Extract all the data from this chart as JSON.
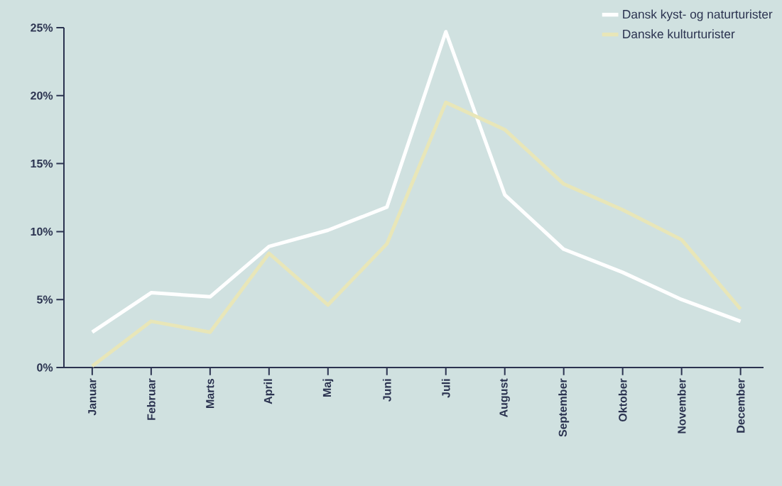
{
  "chart_data": {
    "type": "line",
    "categories": [
      "Januar",
      "Februar",
      "Marts",
      "April",
      "Maj",
      "Juni",
      "Juli",
      "August",
      "September",
      "Oktober",
      "November",
      "December"
    ],
    "series": [
      {
        "name": "Dansk kyst- og naturturister",
        "color": "#ffffff",
        "values": [
          2.6,
          5.5,
          5.2,
          8.9,
          10.1,
          11.8,
          24.7,
          12.7,
          8.7,
          7.0,
          5.0,
          3.4
        ]
      },
      {
        "name": "Danske kulturturister",
        "color": "#e8e6b8",
        "values": [
          0.1,
          3.4,
          2.6,
          8.4,
          4.6,
          9.1,
          19.5,
          17.5,
          13.5,
          11.6,
          9.4,
          4.3
        ]
      }
    ],
    "ylim": [
      0,
      25
    ],
    "yticks": [
      {
        "value": 0,
        "label": "0%"
      },
      {
        "value": 5,
        "label": "5%"
      },
      {
        "value": 10,
        "label": "10%"
      },
      {
        "value": 15,
        "label": "15%"
      },
      {
        "value": 20,
        "label": "20%"
      },
      {
        "value": 25,
        "label": "25%"
      }
    ],
    "legend": "top right",
    "grid": false
  }
}
